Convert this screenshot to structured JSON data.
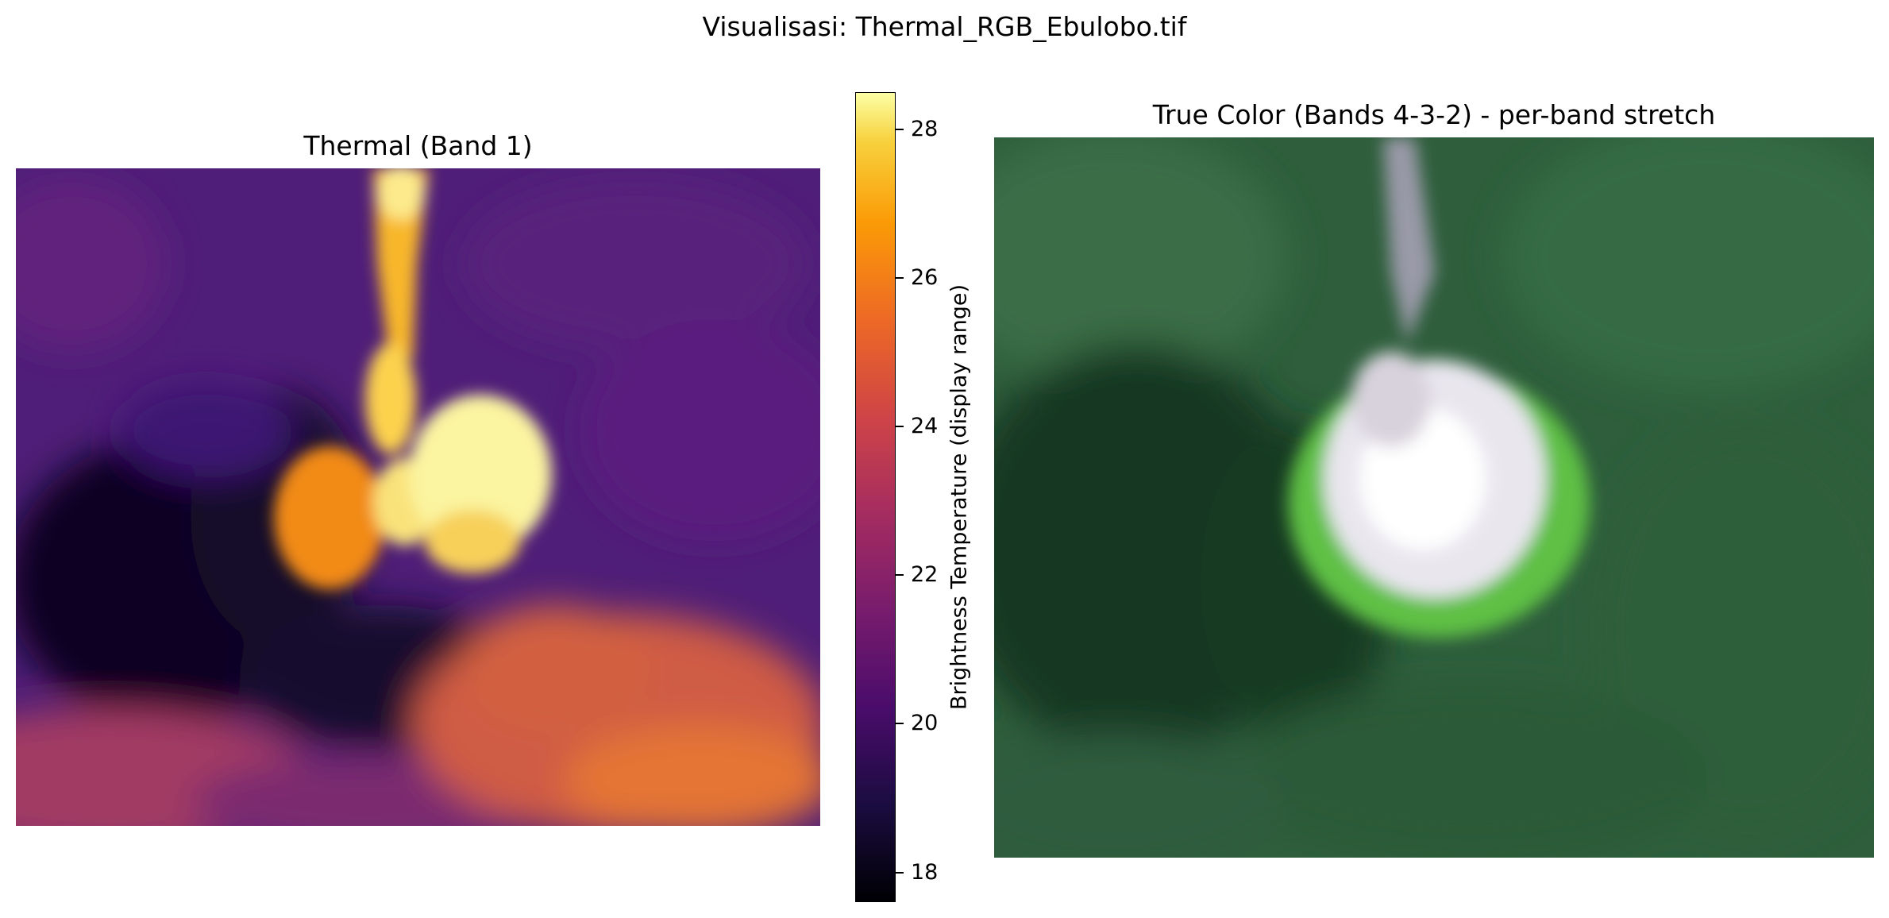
{
  "figure": {
    "suptitle": "Visualisasi: Thermal_RGB_Ebulobo.tif"
  },
  "panels": {
    "thermal": {
      "title": "Thermal (Band 1)",
      "colormap": "inferno"
    },
    "truecolor": {
      "title": "True Color (Bands 4-3-2) - per-band stretch"
    }
  },
  "colorbar": {
    "label": "Brightness Temperature (display range)",
    "min": 17.6,
    "max": 28.5,
    "ticks": [
      {
        "value": 18,
        "label": "18"
      },
      {
        "value": 20,
        "label": "20"
      },
      {
        "value": 22,
        "label": "22"
      },
      {
        "value": 24,
        "label": "24"
      },
      {
        "value": 26,
        "label": "26"
      },
      {
        "value": 28,
        "label": "28"
      }
    ]
  },
  "chart_data": [
    {
      "type": "heatmap",
      "title": "Thermal (Band 1)",
      "colormap": "inferno",
      "value_range": [
        17.6,
        28.5
      ],
      "colorbar_label": "Brightness Temperature (display range)",
      "colorbar_ticks": [
        18,
        20,
        22,
        24,
        26,
        28
      ],
      "axes": "off"
    },
    {
      "type": "heatmap",
      "title": "True Color (Bands 4-3-2) - per-band stretch",
      "axes": "off"
    }
  ]
}
